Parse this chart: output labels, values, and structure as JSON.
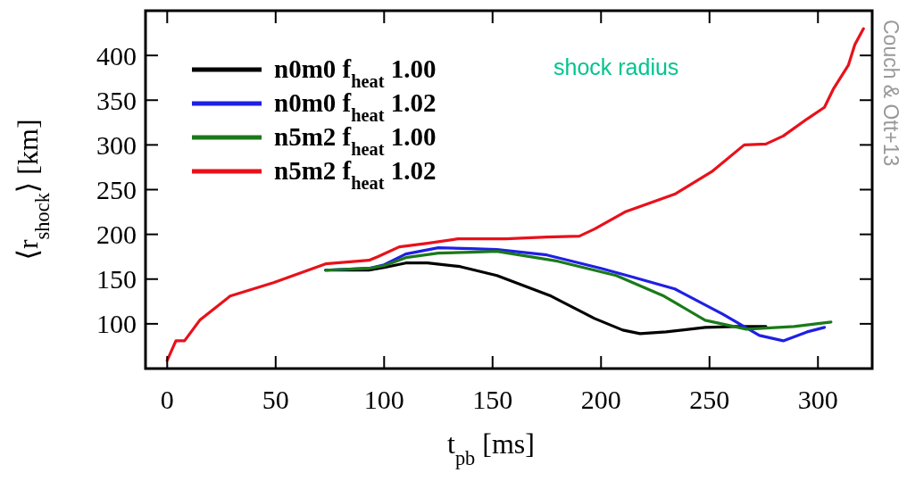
{
  "chart_data": {
    "type": "line",
    "xlabel": "t$_{pb}$ [ms]",
    "ylabel": "⟨r$_{shock}$⟩ [km]",
    "xlim": [
      -10,
      325
    ],
    "ylim": [
      50,
      450
    ],
    "xticks": [
      0,
      50,
      100,
      150,
      200,
      250,
      300
    ],
    "yticks": [
      100,
      150,
      200,
      250,
      300,
      350,
      400
    ],
    "grid": false,
    "legend": "top left",
    "line_style": "solid",
    "marker": "none",
    "annotations": [
      "shock radius",
      "Couch & Ott+13"
    ],
    "series": [
      {
        "name": "n0m0 f$_{heat}$ 1.00",
        "color": "#000000",
        "x": [
          73,
          93,
          100,
          110,
          120,
          135,
          152,
          177,
          197,
          210,
          218,
          230,
          248,
          262,
          276
        ],
        "values": [
          160,
          160,
          163,
          168,
          168,
          164,
          154,
          131,
          106,
          93,
          89,
          91,
          96,
          97,
          97
        ]
      },
      {
        "name": "n0m0 f$_{heat}$ 1.02",
        "color": "#1f1fe6",
        "x": [
          73,
          93,
          100,
          110,
          125,
          140,
          152,
          175,
          200,
          215,
          234,
          256,
          273,
          284,
          295,
          303
        ],
        "values": [
          160,
          162,
          166,
          178,
          185,
          184,
          183,
          177,
          162,
          152,
          139,
          111,
          87,
          81,
          91,
          96
        ]
      },
      {
        "name": "n5m2 f$_{heat}$ 1.00",
        "color": "#1a7a1a",
        "x": [
          73,
          93,
          100,
          110,
          125,
          140,
          152,
          180,
          207,
          229,
          248,
          267,
          289,
          306
        ],
        "values": [
          160,
          162,
          165,
          174,
          179,
          180,
          181,
          170,
          154,
          131,
          104,
          94,
          97,
          102
        ]
      },
      {
        "name": "n5m2 f$_{heat}$ 1.02",
        "color": "#e8111b",
        "x": [
          0,
          4,
          8,
          15,
          29,
          49,
          73,
          93,
          97,
          107,
          120,
          134,
          156,
          175,
          190,
          197,
          211,
          234,
          251,
          266,
          276,
          284,
          295,
          303,
          307,
          314,
          317,
          321
        ],
        "values": [
          59,
          81,
          81,
          104,
          131,
          146,
          167,
          171,
          175,
          186,
          190,
          195,
          195,
          197,
          198,
          206,
          225,
          245,
          270,
          300,
          301,
          310,
          329,
          342,
          362,
          389,
          412,
          430
        ]
      }
    ]
  }
}
